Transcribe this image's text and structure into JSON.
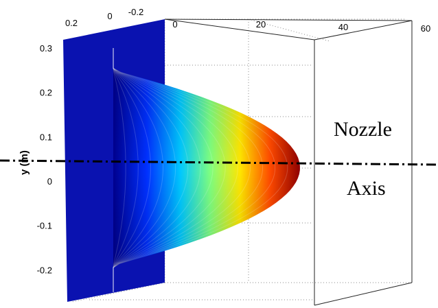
{
  "chart_data": {
    "type": "surface",
    "ylabel": "y (m)",
    "y_ticks": [
      "0.3",
      "0.2",
      "0.1",
      "0",
      "-0.1",
      "-0.2"
    ],
    "x_ticks_front": [
      "0",
      "20",
      "40",
      "60"
    ],
    "z_ticks_left": [
      "0.2",
      "0",
      "-0.2"
    ],
    "ylim": [
      -0.25,
      0.3
    ],
    "xlim": [
      0,
      60
    ],
    "profile": {
      "y": [
        -0.25,
        -0.2,
        -0.15,
        -0.1,
        -0.05,
        0,
        0.05,
        0.1,
        0.15,
        0.2,
        0.25
      ],
      "value": [
        0,
        2,
        7,
        14,
        22,
        29,
        22,
        14,
        7,
        2,
        0
      ]
    },
    "colormap": "jet",
    "annotations": [
      "Nozzle",
      "Axis"
    ],
    "axis_line_style": "dash-dot",
    "axis_line_y": 0.03
  }
}
